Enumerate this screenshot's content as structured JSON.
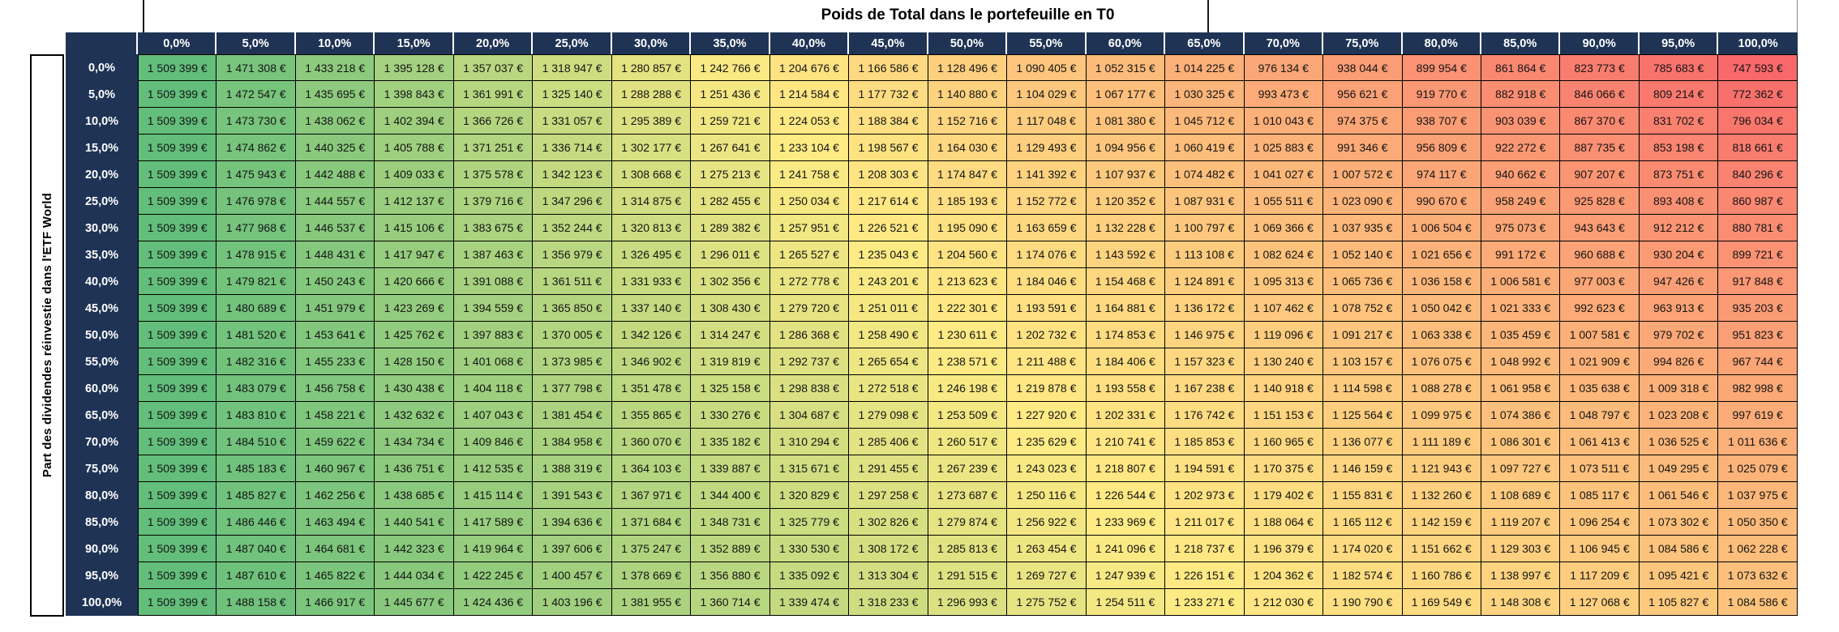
{
  "chart_data": {
    "type": "heatmap",
    "title": "Poids de Total dans le portefeuille en T0",
    "x_title": "Poids de Total dans le portefeuille en T0",
    "y_title": "Part des dividendes réinvestie dans l'ETF World",
    "value_suffix": "€",
    "x_labels": [
      "0,0%",
      "5,0%",
      "10,0%",
      "15,0%",
      "20,0%",
      "25,0%",
      "30,0%",
      "35,0%",
      "40,0%",
      "45,0%",
      "50,0%",
      "55,0%",
      "60,0%",
      "65,0%",
      "70,0%",
      "75,0%",
      "80,0%",
      "85,0%",
      "90,0%",
      "95,0%",
      "100,0%"
    ],
    "y_labels": [
      "0,0%",
      "5,0%",
      "10,0%",
      "15,0%",
      "20,0%",
      "25,0%",
      "30,0%",
      "35,0%",
      "40,0%",
      "45,0%",
      "50,0%",
      "55,0%",
      "60,0%",
      "65,0%",
      "70,0%",
      "75,0%",
      "80,0%",
      "85,0%",
      "90,0%",
      "95,0%",
      "100,0%"
    ],
    "values": [
      [
        1509399,
        1471308,
        1433218,
        1395128,
        1357037,
        1318947,
        1280857,
        1242766,
        1204676,
        1166586,
        1128496,
        1090405,
        1052315,
        1014225,
        976134,
        938044,
        899954,
        861864,
        823773,
        785683,
        747593
      ],
      [
        1509399,
        1472547,
        1435695,
        1398843,
        1361991,
        1325140,
        1288288,
        1251436,
        1214584,
        1177732,
        1140880,
        1104029,
        1067177,
        1030325,
        993473,
        956621,
        919770,
        882918,
        846066,
        809214,
        772362
      ],
      [
        1509399,
        1473730,
        1438062,
        1402394,
        1366726,
        1331057,
        1295389,
        1259721,
        1224053,
        1188384,
        1152716,
        1117048,
        1081380,
        1045712,
        1010043,
        974375,
        938707,
        903039,
        867370,
        831702,
        796034
      ],
      [
        1509399,
        1474862,
        1440325,
        1405788,
        1371251,
        1336714,
        1302177,
        1267641,
        1233104,
        1198567,
        1164030,
        1129493,
        1094956,
        1060419,
        1025883,
        991346,
        956809,
        922272,
        887735,
        853198,
        818661
      ],
      [
        1509399,
        1475943,
        1442488,
        1409033,
        1375578,
        1342123,
        1308668,
        1275213,
        1241758,
        1208303,
        1174847,
        1141392,
        1107937,
        1074482,
        1041027,
        1007572,
        974117,
        940662,
        907207,
        873751,
        840296
      ],
      [
        1509399,
        1476978,
        1444557,
        1412137,
        1379716,
        1347296,
        1314875,
        1282455,
        1250034,
        1217614,
        1185193,
        1152772,
        1120352,
        1087931,
        1055511,
        1023090,
        990670,
        958249,
        925828,
        893408,
        860987
      ],
      [
        1509399,
        1477968,
        1446537,
        1415106,
        1383675,
        1352244,
        1320813,
        1289382,
        1257951,
        1226521,
        1195090,
        1163659,
        1132228,
        1100797,
        1069366,
        1037935,
        1006504,
        975073,
        943643,
        912212,
        880781
      ],
      [
        1509399,
        1478915,
        1448431,
        1417947,
        1387463,
        1356979,
        1326495,
        1296011,
        1265527,
        1235043,
        1204560,
        1174076,
        1143592,
        1113108,
        1082624,
        1052140,
        1021656,
        991172,
        960688,
        930204,
        899721
      ],
      [
        1509399,
        1479821,
        1450243,
        1420666,
        1391088,
        1361511,
        1331933,
        1302356,
        1272778,
        1243201,
        1213623,
        1184046,
        1154468,
        1124891,
        1095313,
        1065736,
        1036158,
        1006581,
        977003,
        947426,
        917848
      ],
      [
        1509399,
        1480689,
        1451979,
        1423269,
        1394559,
        1365850,
        1337140,
        1308430,
        1279720,
        1251011,
        1222301,
        1193591,
        1164881,
        1136172,
        1107462,
        1078752,
        1050042,
        1021333,
        992623,
        963913,
        935203
      ],
      [
        1509399,
        1481520,
        1453641,
        1425762,
        1397883,
        1370005,
        1342126,
        1314247,
        1286368,
        1258490,
        1230611,
        1202732,
        1174853,
        1146975,
        1119096,
        1091217,
        1063338,
        1035459,
        1007581,
        979702,
        951823
      ],
      [
        1509399,
        1482316,
        1455233,
        1428150,
        1401068,
        1373985,
        1346902,
        1319819,
        1292737,
        1265654,
        1238571,
        1211488,
        1184406,
        1157323,
        1130240,
        1103157,
        1076075,
        1048992,
        1021909,
        994826,
        967744
      ],
      [
        1509399,
        1483079,
        1456758,
        1430438,
        1404118,
        1377798,
        1351478,
        1325158,
        1298838,
        1272518,
        1246198,
        1219878,
        1193558,
        1167238,
        1140918,
        1114598,
        1088278,
        1061958,
        1035638,
        1009318,
        982998
      ],
      [
        1509399,
        1483810,
        1458221,
        1432632,
        1407043,
        1381454,
        1355865,
        1330276,
        1304687,
        1279098,
        1253509,
        1227920,
        1202331,
        1176742,
        1151153,
        1125564,
        1099975,
        1074386,
        1048797,
        1023208,
        997619
      ],
      [
        1509399,
        1484510,
        1459622,
        1434734,
        1409846,
        1384958,
        1360070,
        1335182,
        1310294,
        1285406,
        1260517,
        1235629,
        1210741,
        1185853,
        1160965,
        1136077,
        1111189,
        1086301,
        1061413,
        1036525,
        1011636
      ],
      [
        1509399,
        1485183,
        1460967,
        1436751,
        1412535,
        1388319,
        1364103,
        1339887,
        1315671,
        1291455,
        1267239,
        1243023,
        1218807,
        1194591,
        1170375,
        1146159,
        1121943,
        1097727,
        1073511,
        1049295,
        1025079
      ],
      [
        1509399,
        1485827,
        1462256,
        1438685,
        1415114,
        1391543,
        1367971,
        1344400,
        1320829,
        1297258,
        1273687,
        1250116,
        1226544,
        1202973,
        1179402,
        1155831,
        1132260,
        1108689,
        1085117,
        1061546,
        1037975
      ],
      [
        1509399,
        1486446,
        1463494,
        1440541,
        1417589,
        1394636,
        1371684,
        1348731,
        1325779,
        1302826,
        1279874,
        1256922,
        1233969,
        1211017,
        1188064,
        1165112,
        1142159,
        1119207,
        1096254,
        1073302,
        1050350
      ],
      [
        1509399,
        1487040,
        1464681,
        1442323,
        1419964,
        1397606,
        1375247,
        1352889,
        1330530,
        1308172,
        1285813,
        1263454,
        1241096,
        1218737,
        1196379,
        1174020,
        1151662,
        1129303,
        1106945,
        1084586,
        1062228
      ],
      [
        1509399,
        1487610,
        1465822,
        1444034,
        1422245,
        1400457,
        1378669,
        1356880,
        1335092,
        1313304,
        1291515,
        1269727,
        1247939,
        1226151,
        1204362,
        1182574,
        1160786,
        1138997,
        1117209,
        1095421,
        1073632
      ],
      [
        1509399,
        1488158,
        1466917,
        1445677,
        1424436,
        1403196,
        1381955,
        1360714,
        1339474,
        1318233,
        1296993,
        1275752,
        1254511,
        1233271,
        1212030,
        1190790,
        1169549,
        1148308,
        1127068,
        1105827,
        1084586
      ]
    ],
    "color_scale": {
      "type": "3-color",
      "min_color": "#F8696B",
      "mid_color": "#FFEB84",
      "max_color": "#63BE7B",
      "midpoint": "50th percentile"
    },
    "layout": {
      "header_bg": "#1F3355",
      "header_text": "#FFFFFF",
      "grid_border": "#000000"
    }
  }
}
